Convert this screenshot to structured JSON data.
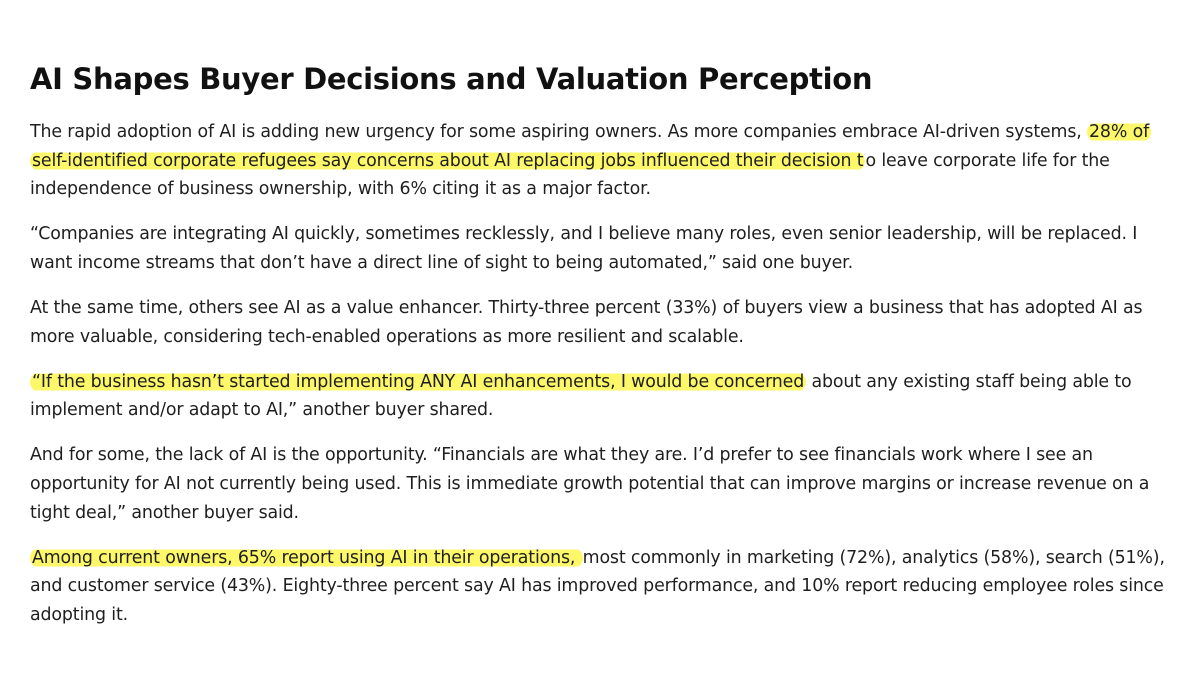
{
  "article": {
    "title": "AI Shapes Buyer Decisions and Valuation Perception",
    "highlight_color": "#fdf86a",
    "paragraphs": [
      {
        "before": "The rapid adoption of AI is adding new urgency for some aspiring owners. As more companies embrace AI-driven systems, ",
        "highlight": "28% of self-identified corporate refugees say concerns about AI replacing jobs influenced their decision t",
        "after": "o leave corporate life for the independence of business ownership, with 6% citing it as a major factor."
      },
      {
        "before": "“Companies are integrating AI quickly, sometimes recklessly, and I believe many roles, even senior leadership, will be replaced. I want income streams that don’t have a direct line of sight to being automated,” said one buyer.",
        "highlight": "",
        "after": ""
      },
      {
        "before": "At the same time, others see AI as a value enhancer. Thirty-three percent (33%) of buyers view a business that has adopted AI as more valuable, considering tech-enabled operations as more resilient and scalable.",
        "highlight": "",
        "after": ""
      },
      {
        "before": "",
        "highlight": "“If the business hasn’t started implementing ANY AI enhancements, I would be concerned",
        "after": " about any existing staff being able to implement and/or adapt to AI,” another buyer shared."
      },
      {
        "before": "And for some, the lack of AI is the opportunity. “Financials are what they are. I’d prefer to see financials work where I see an opportunity for AI not currently being used. This is immediate growth potential that can improve margins or increase revenue on a tight deal,” another buyer said.",
        "highlight": "",
        "after": ""
      },
      {
        "before": "",
        "highlight": "Among current owners, 65% report using AI in their operations, ",
        "after": "most commonly in marketing (72%), analytics (58%), search (51%), and customer service (43%). Eighty-three percent say AI has improved performance, and 10% report reducing employee roles since adopting it."
      }
    ]
  }
}
